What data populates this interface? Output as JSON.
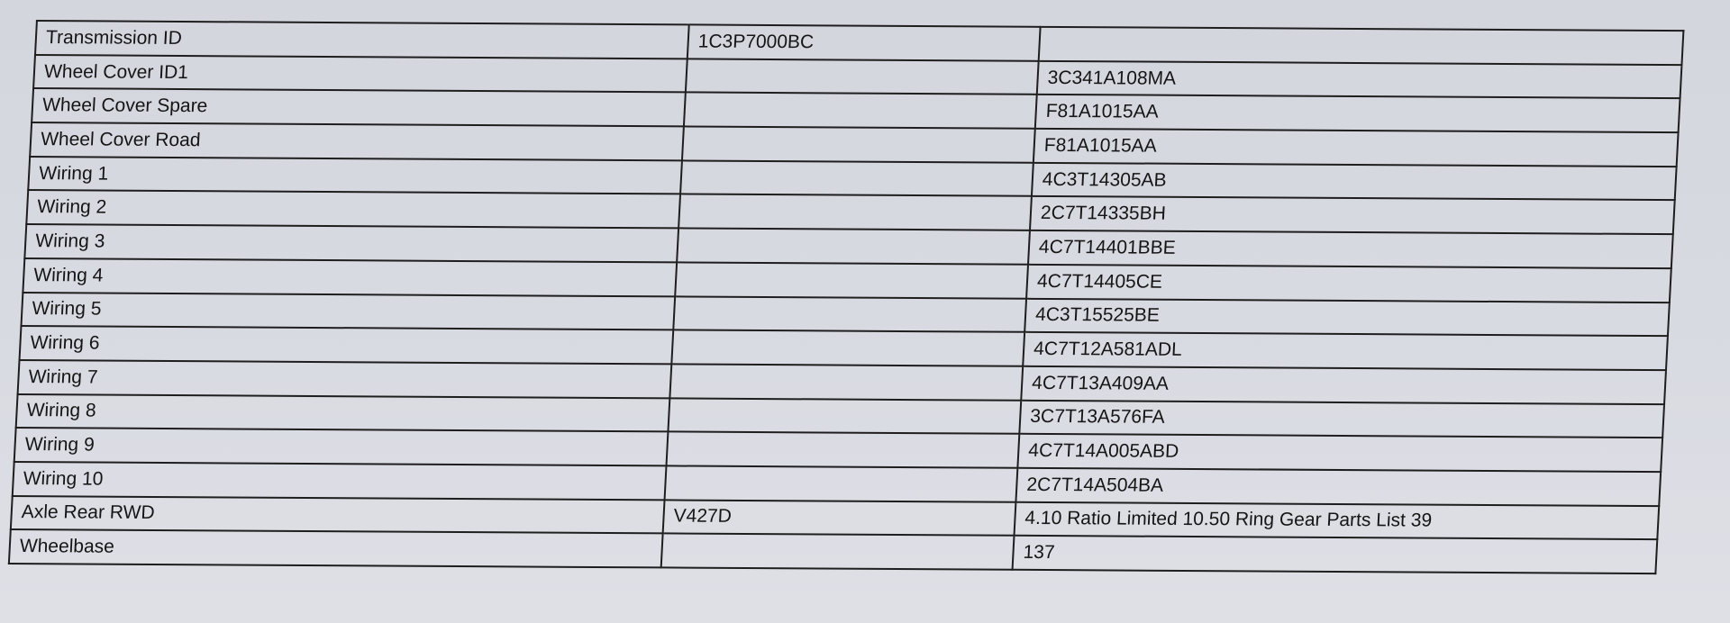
{
  "table": {
    "rows": [
      {
        "label": "Transmission ID",
        "col2": "1C3P7000BC",
        "col3": ""
      },
      {
        "label": "Wheel Cover ID1",
        "col2": "",
        "col3": "3C341A108MA"
      },
      {
        "label": "Wheel Cover Spare",
        "col2": "",
        "col3": "F81A1015AA"
      },
      {
        "label": "Wheel Cover Road",
        "col2": "",
        "col3": "F81A1015AA"
      },
      {
        "label": "Wiring 1",
        "col2": "",
        "col3": "4C3T14305AB"
      },
      {
        "label": "Wiring 2",
        "col2": "",
        "col3": "2C7T14335BH"
      },
      {
        "label": "Wiring 3",
        "col2": "",
        "col3": "4C7T14401BBE"
      },
      {
        "label": "Wiring 4",
        "col2": "",
        "col3": "4C7T14405CE"
      },
      {
        "label": "Wiring 5",
        "col2": "",
        "col3": "4C3T15525BE"
      },
      {
        "label": "Wiring 6",
        "col2": "",
        "col3": "4C7T12A581ADL"
      },
      {
        "label": "Wiring 7",
        "col2": "",
        "col3": "4C7T13A409AA"
      },
      {
        "label": "Wiring 8",
        "col2": "",
        "col3": "3C7T13A576FA"
      },
      {
        "label": "Wiring 9",
        "col2": "",
        "col3": "4C7T14A005ABD"
      },
      {
        "label": "Wiring 10",
        "col2": "",
        "col3": "2C7T14A504BA"
      },
      {
        "label": "Axle Rear RWD",
        "col2": "V427D",
        "col3": "4.10 Ratio Limited 10.50 Ring Gear Parts List 39"
      },
      {
        "label": "Wheelbase",
        "col2": "",
        "col3": "137"
      }
    ]
  }
}
